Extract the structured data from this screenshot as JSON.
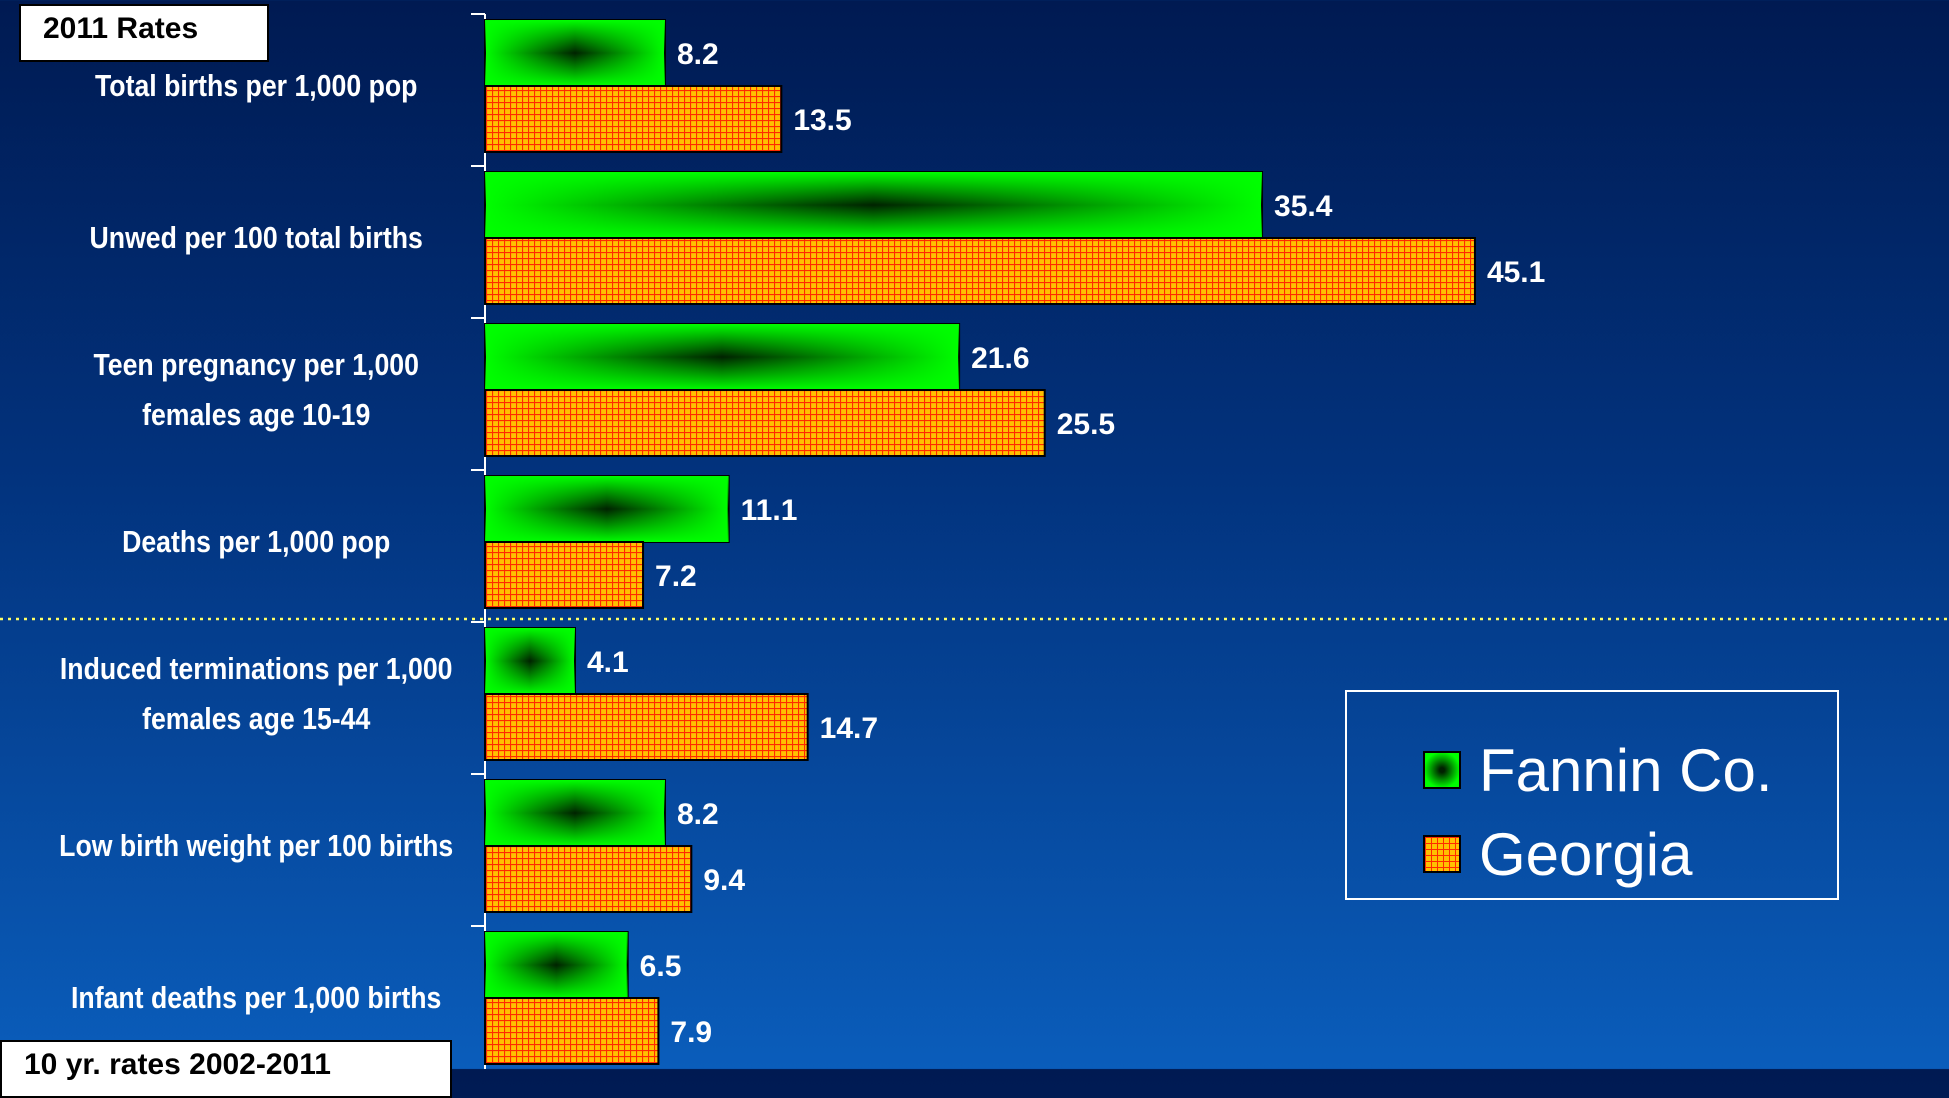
{
  "chart_data": {
    "type": "bar",
    "orientation": "horizontal",
    "box_labels": {
      "top": "2011 Rates",
      "bottom": "10 yr. rates 2002-2011"
    },
    "categories": [
      "Total births per 1,000 pop",
      "Unwed per 100 total births",
      "Teen pregnancy per 1,000 females age 10-19",
      "Deaths per 1,000 pop",
      "Induced terminations per 1,000 females age 15-44",
      "Low birth weight per 100 births",
      "Infant deaths per 1,000 births"
    ],
    "series": [
      {
        "name": "Fannin Co.",
        "values": [
          8.2,
          35.4,
          21.6,
          11.1,
          4.1,
          8.2,
          6.5
        ]
      },
      {
        "name": "Georgia",
        "values": [
          13.5,
          45.1,
          25.5,
          7.2,
          14.7,
          9.4,
          7.9
        ]
      }
    ],
    "xlim": [
      0,
      50
    ],
    "legend_position": "bottom-right",
    "colors": {
      "fannin": "#00ff00",
      "fannin_dark": "#002200",
      "georgia": "#ffc000",
      "georgia_grid": "#ff2a00",
      "divider": "#ffff66"
    }
  }
}
